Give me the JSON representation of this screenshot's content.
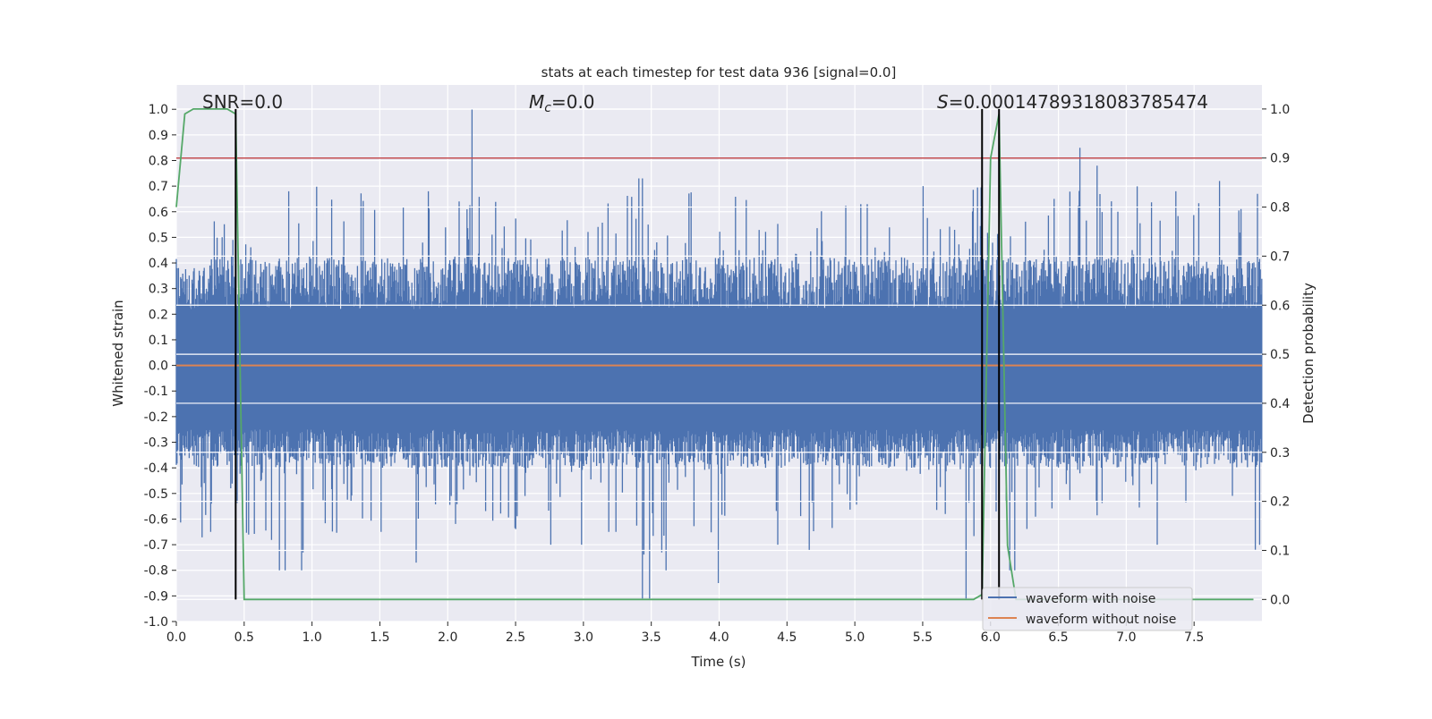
{
  "chart_data": {
    "type": "line",
    "title": "stats at each timestep for test data 936 [signal=0.0]",
    "xlabel": "Time (s)",
    "ylabel": "Whitened strain",
    "ylabel_right": "Detection probability",
    "xlim": [
      0,
      8.0
    ],
    "ylim": [
      -1.0,
      1.095
    ],
    "ylim_right": [
      -0.045,
      1.049
    ],
    "xticks": [
      "0.0",
      "0.5",
      "1.0",
      "1.5",
      "2.0",
      "2.5",
      "3.0",
      "3.5",
      "4.0",
      "4.5",
      "5.0",
      "5.5",
      "6.0",
      "6.5",
      "7.0",
      "7.5"
    ],
    "yticks": [
      "-1.0",
      "-0.9",
      "-0.8",
      "-0.7",
      "-0.6",
      "-0.5",
      "-0.4",
      "-0.3",
      "-0.2",
      "-0.1",
      "0.0",
      "0.1",
      "0.2",
      "0.3",
      "0.4",
      "0.5",
      "0.6",
      "0.7",
      "0.8",
      "0.9",
      "1.0"
    ],
    "yticks_right": [
      "0.0",
      "0.1",
      "0.2",
      "0.3",
      "0.4",
      "0.5",
      "0.6",
      "0.7",
      "0.8",
      "0.9",
      "1.0"
    ],
    "grid": true,
    "background": "#eaeaf2",
    "annotations": {
      "snr": "SNR=0.0",
      "mc_symbol": "M",
      "mc_sub": "c",
      "mc_value": "=0.0",
      "s_symbol": "S",
      "s_value": "=0.00014789318083785474"
    },
    "legend": {
      "position": "lower-right",
      "entries": [
        "waveform with noise",
        "waveform without noise"
      ]
    },
    "series": [
      {
        "name": "waveform with noise",
        "color": "#4c72b0",
        "axis": "left",
        "bin_width_s": 0.25,
        "bin_max": [
          0.5,
          0.63,
          0.6,
          0.68,
          0.82,
          0.75,
          0.73,
          0.68,
          1.0,
          0.7,
          0.65,
          0.63,
          0.72,
          0.73,
          0.7,
          0.76,
          0.73,
          0.6,
          0.72,
          0.87,
          0.63,
          0.65,
          0.7,
          0.85,
          0.72,
          0.65,
          0.85,
          0.78,
          0.82,
          0.68,
          0.72,
          0.67
        ],
        "bin_min": [
          -0.8,
          -0.65,
          -0.8,
          -0.8,
          -0.8,
          -0.73,
          -0.65,
          -0.77,
          -0.67,
          -0.75,
          -0.7,
          -0.7,
          -0.65,
          -0.91,
          -0.8,
          -0.85,
          -0.68,
          -0.7,
          -0.85,
          -0.7,
          -0.65,
          -0.68,
          -0.8,
          -0.91,
          -0.8,
          -0.72,
          -0.7,
          -0.68,
          -0.7,
          -0.75,
          -0.78,
          -0.8
        ]
      },
      {
        "name": "waveform without noise",
        "color": "#dd8452",
        "axis": "left",
        "x": [
          0,
          8.0
        ],
        "y": [
          0.0,
          0.0
        ]
      },
      {
        "color": "#55a868",
        "axis": "right",
        "x": [
          0,
          0.0625,
          0.125,
          0.1875,
          0.25,
          0.3125,
          0.375,
          0.4375,
          0.5,
          5.875,
          5.9375,
          6.0,
          6.0625,
          6.125,
          6.1875,
          7.9375
        ],
        "y": [
          0.8,
          0.99,
          1.0,
          1.0,
          1.0,
          1.0,
          1.0,
          0.99,
          0.0,
          0.0,
          0.01,
          0.9,
          0.99,
          0.11,
          0.0,
          0.0
        ]
      }
    ],
    "threshold": {
      "axis": "right",
      "value": 0.9,
      "color": "#c44e52"
    },
    "vlines": {
      "axis": "right",
      "x": [
        0.4375,
        5.9375,
        6.0625
      ],
      "ymin": 0.0,
      "ymax": 1.0,
      "color": "#000000"
    }
  }
}
